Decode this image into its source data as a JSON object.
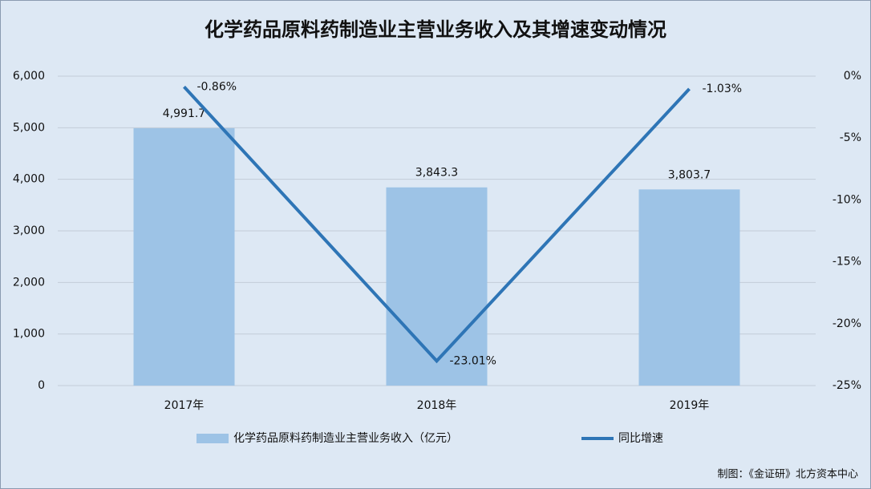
{
  "chart_data": {
    "type": "bar",
    "title": "化学药品原料药制造业主营业务收入及其增速变动情况",
    "categories": [
      "2017年",
      "2018年",
      "2019年"
    ],
    "series": [
      {
        "name": "化学药品原料药制造业主营业务收入（亿元）",
        "type": "bar",
        "color": "#9dc3e6",
        "values": [
          4991.7,
          3843.3,
          3803.7
        ],
        "value_labels": [
          "4,991.7",
          "3,843.3",
          "3,803.7"
        ]
      },
      {
        "name": "同比增速",
        "type": "line",
        "axis": "y2",
        "color": "#2e75b6",
        "values": [
          -0.86,
          -23.01,
          -1.03
        ],
        "value_labels": [
          "-0.86%",
          "-23.01%",
          "-1.03%"
        ]
      }
    ],
    "ylim": [
      0,
      6000
    ],
    "yticks": [
      0,
      {
        "value": 1000,
        "label": "1,000"
      },
      {
        "value": 2000,
        "label": "2,000"
      },
      {
        "value": 3000,
        "label": "3,000"
      },
      {
        "value": 4000,
        "label": "4,000"
      },
      {
        "value": 5000,
        "label": "5,000"
      },
      {
        "value": 6000,
        "label": "6,000"
      }
    ],
    "y2lim": [
      -25,
      0
    ],
    "y2ticks": [
      {
        "value": -25,
        "label": "-25%"
      },
      {
        "value": -20,
        "label": "-20%"
      },
      {
        "value": -15,
        "label": "-15%"
      },
      {
        "value": -10,
        "label": "-10%"
      },
      {
        "value": -5,
        "label": "-5%"
      },
      {
        "value": 0,
        "label": "0%"
      }
    ],
    "grid": true,
    "legend": "bottom",
    "source": "制图：《金证研》北方资本中心"
  }
}
